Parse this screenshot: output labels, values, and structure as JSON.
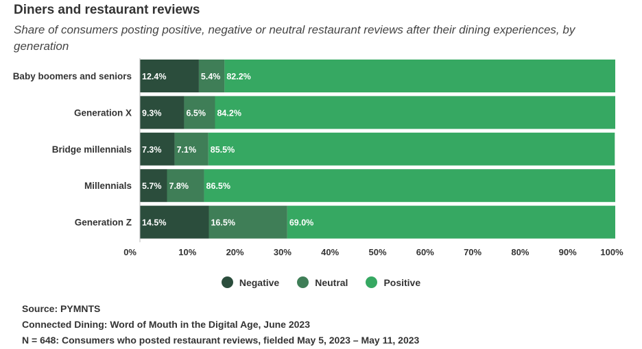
{
  "header": {
    "title": "Diners and restaurant reviews",
    "subtitle": "Share of consumers posting positive, negative or neutral restaurant reviews after their dining experiences, by generation"
  },
  "chart_data": {
    "type": "bar",
    "orientation": "horizontal",
    "stacked": true,
    "title": "Diners and restaurant reviews",
    "subtitle": "Share of consumers posting positive, negative or neutral restaurant reviews after their dining experiences, by generation",
    "categories": [
      "Baby boomers and seniors",
      "Generation X",
      "Bridge millennials",
      "Millennials",
      "Generation Z"
    ],
    "series": [
      {
        "name": "Negative",
        "color": "#2b4d3c",
        "values": [
          12.4,
          9.3,
          7.3,
          5.7,
          14.5
        ],
        "labels": [
          "12.4%",
          "9.3%",
          "7.3%",
          "5.7%",
          "14.5%"
        ]
      },
      {
        "name": "Neutral",
        "color": "#3f7e57",
        "values": [
          5.4,
          6.5,
          7.1,
          7.8,
          16.5
        ],
        "labels": [
          "5.4%",
          "6.5%",
          "7.1%",
          "7.8%",
          "16.5%"
        ]
      },
      {
        "name": "Positive",
        "color": "#36a862",
        "values": [
          82.2,
          84.2,
          85.5,
          86.5,
          69.0
        ],
        "labels": [
          "82.2%",
          "84.2%",
          "85.5%",
          "86.5%",
          "69.0%"
        ]
      }
    ],
    "xlim": [
      0,
      100
    ],
    "xticks": [
      0,
      10,
      20,
      30,
      40,
      50,
      60,
      70,
      80,
      90,
      100
    ],
    "xtick_labels": [
      "0%",
      "10%",
      "20%",
      "30%",
      "40%",
      "50%",
      "60%",
      "70%",
      "80%",
      "90%",
      "100%"
    ],
    "xlabel": "",
    "ylabel": "",
    "grid": false,
    "legend_position": "bottom-center"
  },
  "legend": {
    "items": [
      {
        "label": "Negative",
        "color": "#2b4d3c"
      },
      {
        "label": "Neutral",
        "color": "#3f7e57"
      },
      {
        "label": "Positive",
        "color": "#36a862"
      }
    ]
  },
  "footer": {
    "source": "Source: PYMNTS",
    "report": "Connected Dining: Word of Mouth in the Digital Age, June 2023",
    "sample": "N = 648: Consumers who posted restaurant reviews, fielded May 5, 2023 – May 11, 2023"
  }
}
